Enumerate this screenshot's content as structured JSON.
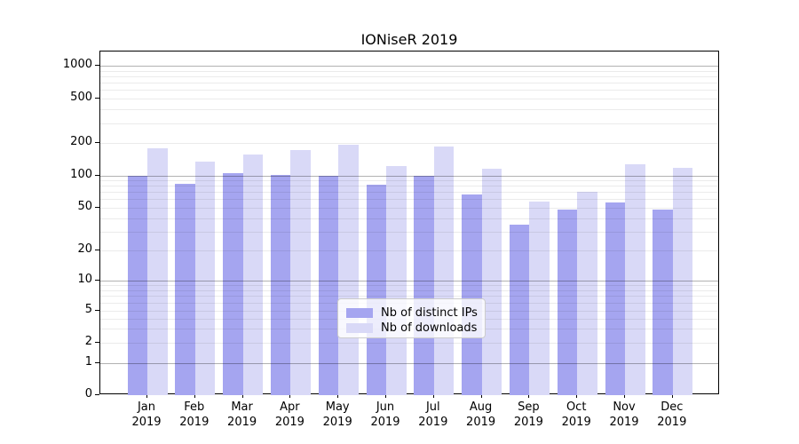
{
  "title": "IONiseR 2019",
  "legend": {
    "items": [
      {
        "label": "Nb of distinct IPs",
        "color": "#a5a5f0"
      },
      {
        "label": "Nb of downloads",
        "color": "#d9d9f7"
      }
    ]
  },
  "chart_data": {
    "type": "bar",
    "title": "IONiseR 2019",
    "months": [
      "Jan",
      "Feb",
      "Mar",
      "Apr",
      "May",
      "Jun",
      "Jul",
      "Aug",
      "Sep",
      "Oct",
      "Nov",
      "Dec"
    ],
    "year_label": "2019",
    "categories": [
      "Jan 2019",
      "Feb 2019",
      "Mar 2019",
      "Apr 2019",
      "May 2019",
      "Jun 2019",
      "Jul 2019",
      "Aug 2019",
      "Sep 2019",
      "Oct 2019",
      "Nov 2019",
      "Dec 2019"
    ],
    "series": [
      {
        "name": "Nb of distinct IPs",
        "color": "#a5a5f0",
        "values": [
          100,
          84,
          104,
          101,
          100,
          82,
          99,
          67,
          35,
          48,
          56,
          48
        ]
      },
      {
        "name": "Nb of downloads",
        "color": "#d9d9f7",
        "values": [
          178,
          135,
          155,
          171,
          192,
          123,
          185,
          115,
          57,
          70,
          128,
          118
        ]
      }
    ],
    "yscale": "symlog",
    "yticks": [
      0,
      1,
      2,
      5,
      10,
      20,
      50,
      100,
      200,
      500,
      1000
    ],
    "ylim": [
      0,
      1400
    ],
    "xlabel": "",
    "ylabel": "",
    "grid": true,
    "gridline_major_values": [
      1,
      10,
      100,
      1000
    ],
    "legend_position": "lower center"
  }
}
